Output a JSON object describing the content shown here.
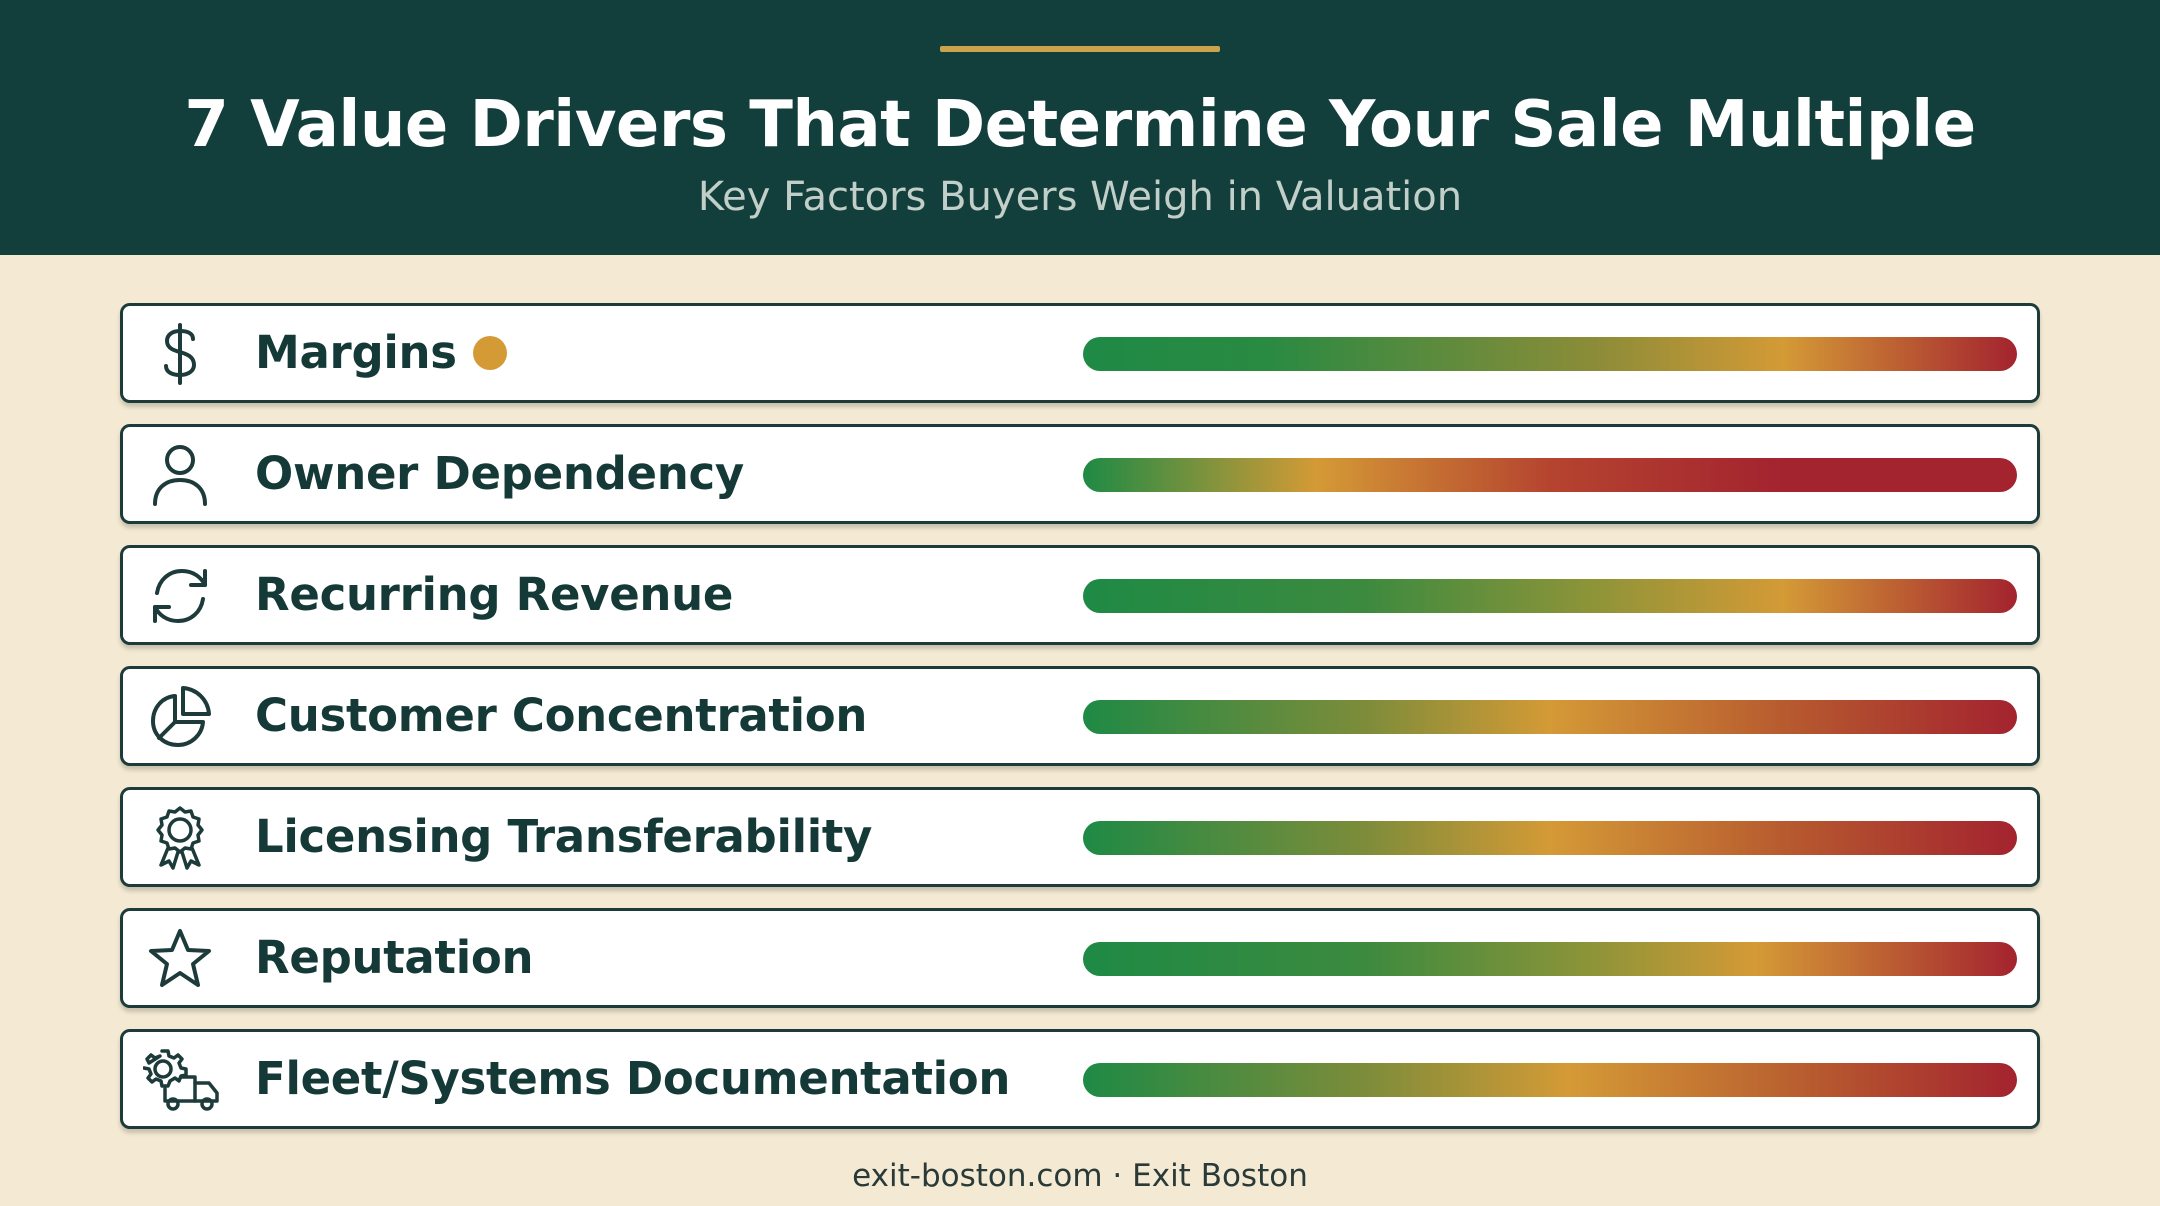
{
  "header": {
    "title": "7 Value Drivers That Determine Your Sale Multiple",
    "subtitle": "Key Factors Buyers Weigh in Valuation"
  },
  "colors": {
    "header_bg": "#123f3c",
    "accent_gold": "#c9a44a",
    "page_bg": "#f4ead3",
    "bar_green": "#1e8a45",
    "bar_amber": "#d49a36",
    "bar_red": "#a3232f"
  },
  "drivers": [
    {
      "label": "Margins",
      "icon": "dollar-sign-icon",
      "marker": true,
      "marker_color": "#d49a36",
      "gradient": [
        [
          "#1e8a45",
          0
        ],
        [
          "#2a8a42",
          20
        ],
        [
          "#8c8c38",
          55
        ],
        [
          "#d49a36",
          75
        ],
        [
          "#a3232f",
          100
        ]
      ]
    },
    {
      "label": "Owner Dependency",
      "icon": "person-icon",
      "marker": false,
      "gradient": [
        [
          "#1e8a45",
          0
        ],
        [
          "#d49a36",
          25
        ],
        [
          "#b5442f",
          50
        ],
        [
          "#a3232f",
          75
        ],
        [
          "#a3232f",
          100
        ]
      ]
    },
    {
      "label": "Recurring Revenue",
      "icon": "refresh-icon",
      "marker": false,
      "gradient": [
        [
          "#1e8a45",
          0
        ],
        [
          "#3c8a3f",
          30
        ],
        [
          "#8f9438",
          55
        ],
        [
          "#d49a36",
          75
        ],
        [
          "#a3232f",
          100
        ]
      ]
    },
    {
      "label": "Customer Concentration",
      "icon": "pie-chart-icon",
      "marker": false,
      "gradient": [
        [
          "#1e8a45",
          0
        ],
        [
          "#7c8c3a",
          30
        ],
        [
          "#d49a36",
          50
        ],
        [
          "#b75b2f",
          75
        ],
        [
          "#a3232f",
          100
        ]
      ]
    },
    {
      "label": "Licensing Transferability",
      "icon": "award-ribbon-icon",
      "marker": false,
      "gradient": [
        [
          "#1e8a45",
          0
        ],
        [
          "#7c8c3a",
          30
        ],
        [
          "#d49a36",
          50
        ],
        [
          "#b75b2f",
          75
        ],
        [
          "#a3232f",
          100
        ]
      ]
    },
    {
      "label": "Reputation",
      "icon": "star-icon",
      "marker": false,
      "gradient": [
        [
          "#1e8a45",
          0
        ],
        [
          "#3c8a3f",
          30
        ],
        [
          "#8f9438",
          55
        ],
        [
          "#d49a36",
          72
        ],
        [
          "#a3232f",
          100
        ]
      ]
    },
    {
      "label": "Fleet/Systems Documentation",
      "icon": "gear-truck-icon",
      "marker": false,
      "gradient": [
        [
          "#1e8a45",
          0
        ],
        [
          "#7c8c3a",
          30
        ],
        [
          "#d49a36",
          52
        ],
        [
          "#b75b2f",
          78
        ],
        [
          "#a3232f",
          100
        ]
      ]
    }
  ],
  "footer": {
    "text": "exit-boston.com · Exit Boston"
  }
}
